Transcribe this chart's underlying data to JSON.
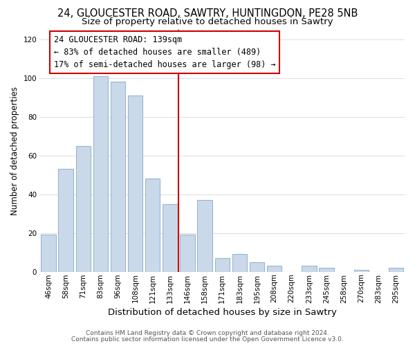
{
  "title1": "24, GLOUCESTER ROAD, SAWTRY, HUNTINGDON, PE28 5NB",
  "title2": "Size of property relative to detached houses in Sawtry",
  "xlabel": "Distribution of detached houses by size in Sawtry",
  "ylabel": "Number of detached properties",
  "categories": [
    "46sqm",
    "58sqm",
    "71sqm",
    "83sqm",
    "96sqm",
    "108sqm",
    "121sqm",
    "133sqm",
    "146sqm",
    "158sqm",
    "171sqm",
    "183sqm",
    "195sqm",
    "208sqm",
    "220sqm",
    "233sqm",
    "245sqm",
    "258sqm",
    "270sqm",
    "283sqm",
    "295sqm"
  ],
  "values": [
    19,
    53,
    65,
    101,
    98,
    91,
    48,
    35,
    19,
    37,
    7,
    9,
    5,
    3,
    0,
    3,
    2,
    0,
    1,
    0,
    2
  ],
  "bar_color": "#c9d9ea",
  "bar_edge_color": "#9ab5cc",
  "vline_color": "#cc0000",
  "annotation_text": "24 GLOUCESTER ROAD: 139sqm\n← 83% of detached houses are smaller (489)\n17% of semi-detached houses are larger (98) →",
  "annotation_box_color": "#ffffff",
  "annotation_box_edge": "#cc0000",
  "footer1": "Contains HM Land Registry data © Crown copyright and database right 2024.",
  "footer2": "Contains public sector information licensed under the Open Government Licence v3.0.",
  "ylim": [
    0,
    125
  ],
  "bg_color": "#ffffff",
  "grid_color": "#dddddd",
  "title1_fontsize": 10.5,
  "title2_fontsize": 9.5,
  "xlabel_fontsize": 9.5,
  "ylabel_fontsize": 8.5,
  "tick_fontsize": 7.5,
  "annot_fontsize": 8.5,
  "footer_fontsize": 6.5
}
